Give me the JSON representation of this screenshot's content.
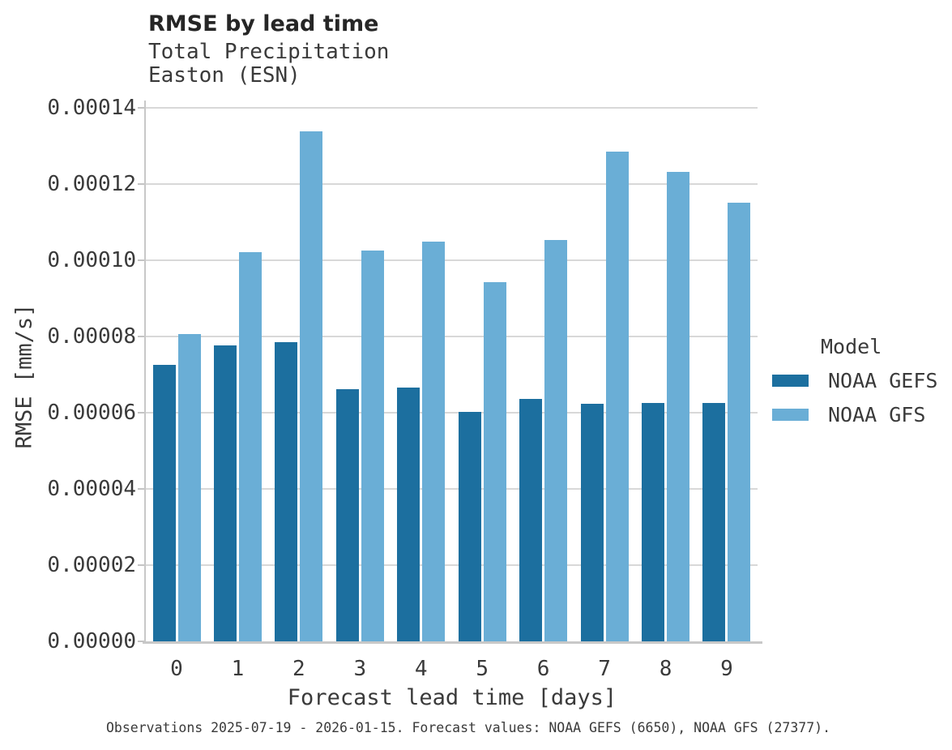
{
  "chart_data": {
    "type": "bar",
    "title": "RMSE by lead time",
    "subtitle_lines": [
      "Total Precipitation",
      "Easton (ESN)"
    ],
    "xlabel": "Forecast lead time [days]",
    "ylabel": "RMSE [mm/s]",
    "categories": [
      "0",
      "1",
      "2",
      "3",
      "4",
      "5",
      "6",
      "7",
      "8",
      "9"
    ],
    "series": [
      {
        "name": "NOAA GEFS",
        "color": "#1c6f9f",
        "values": [
          7.25e-05,
          7.76e-05,
          7.84e-05,
          6.62e-05,
          6.65e-05,
          6.02e-05,
          6.35e-05,
          6.22e-05,
          6.26e-05,
          6.24e-05
        ]
      },
      {
        "name": "NOAA GFS",
        "color": "#6aaed6",
        "values": [
          8.06e-05,
          0.0001021,
          0.0001338,
          0.0001025,
          0.0001048,
          9.41e-05,
          0.0001053,
          0.0001285,
          0.0001231,
          0.0001151
        ]
      }
    ],
    "ylim": [
      0,
      0.00014
    ],
    "ytick_values": [
      0,
      2e-05,
      4e-05,
      6e-05,
      8e-05,
      0.0001,
      0.00012,
      0.00014
    ],
    "ytick_labels": [
      "0.00000",
      "0.00002",
      "0.00004",
      "0.00006",
      "0.00008",
      "0.00010",
      "0.00012",
      "0.00014"
    ],
    "grid": "horizontal",
    "legend": {
      "title": "Model",
      "position": "right"
    },
    "caption": "Observations 2025-07-19 - 2026-01-15. Forecast values: NOAA GEFS (6650), NOAA GFS (27377)."
  }
}
